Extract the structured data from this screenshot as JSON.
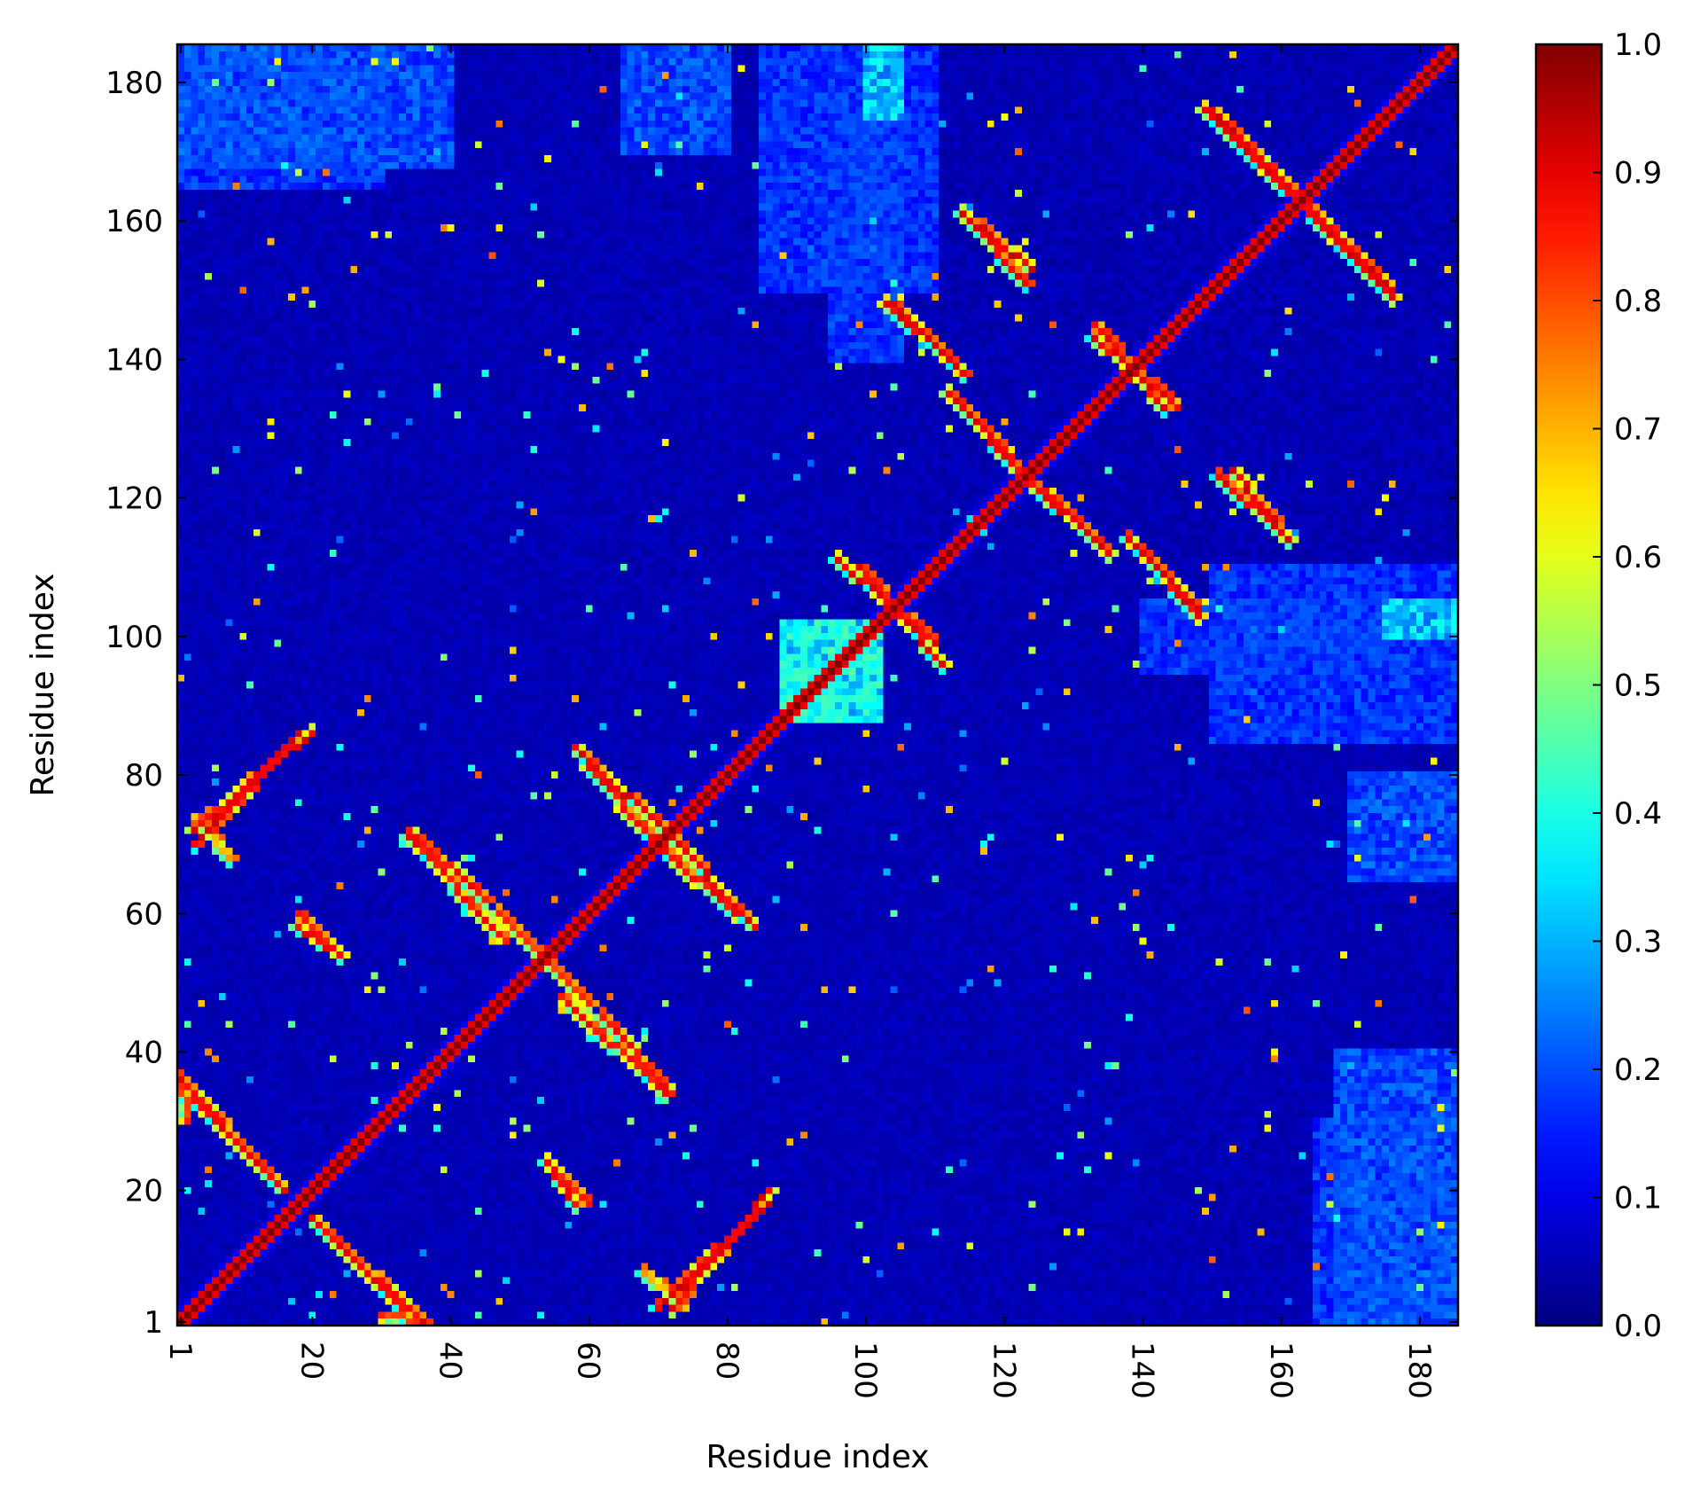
{
  "chart_data": {
    "type": "heatmap",
    "title": "",
    "xlabel": "Residue index",
    "ylabel": "Residue index",
    "x_ticks": [
      1,
      20,
      40,
      60,
      80,
      100,
      120,
      140,
      160,
      180
    ],
    "y_ticks": [
      1,
      20,
      40,
      60,
      80,
      100,
      120,
      140,
      160,
      180
    ],
    "x_tick_labels": [
      "1",
      "20",
      "40",
      "60",
      "80",
      "100",
      "120",
      "140",
      "160",
      "180"
    ],
    "y_tick_labels": [
      "1",
      "20",
      "40",
      "60",
      "80",
      "100",
      "120",
      "140",
      "160",
      "180"
    ],
    "n_residues": 185,
    "xlim": [
      1,
      185
    ],
    "ylim": [
      1,
      185
    ],
    "colormap": "jet",
    "colorbar": {
      "min": 0.0,
      "max": 1.0,
      "ticks": [
        0.0,
        0.1,
        0.2,
        0.3,
        0.4,
        0.5,
        0.6,
        0.7,
        0.8,
        0.9,
        1.0
      ],
      "tick_labels": [
        "0.0",
        "0.1",
        "0.2",
        "0.3",
        "0.4",
        "0.5",
        "0.6",
        "0.7",
        "0.8",
        "0.9",
        "1.0"
      ]
    },
    "matrix_symmetric": true,
    "diagonal_value": 1.0,
    "background_value": 0.05,
    "contact_segments": [
      {
        "start": [
          1,
          36
        ],
        "end": [
          12,
          24
        ],
        "value": 0.92
      },
      {
        "start": [
          3,
          70
        ],
        "end": [
          18,
          86
        ],
        "value": 0.93
      },
      {
        "start": [
          3,
          74
        ],
        "end": [
          8,
          68
        ],
        "value": 0.7
      },
      {
        "start": [
          18,
          60
        ],
        "end": [
          24,
          54
        ],
        "value": 0.9
      },
      {
        "start": [
          20,
          16
        ],
        "end": [
          33,
          3
        ],
        "value": 0.92
      },
      {
        "start": [
          30,
          2
        ],
        "end": [
          36,
          1
        ],
        "value": 0.85
      },
      {
        "start": [
          34,
          72
        ],
        "end": [
          45,
          62
        ],
        "value": 0.9
      },
      {
        "start": [
          47,
          60
        ],
        "end": [
          60,
          47
        ],
        "value": 0.85
      },
      {
        "start": [
          54,
          24
        ],
        "end": [
          58,
          18
        ],
        "value": 0.9
      },
      {
        "start": [
          56,
          48
        ],
        "end": [
          71,
          34
        ],
        "value": 0.9
      },
      {
        "start": [
          58,
          84
        ],
        "end": [
          73,
          70
        ],
        "value": 0.92
      },
      {
        "start": [
          70,
          70
        ],
        "end": [
          81,
          60
        ],
        "value": 0.9
      },
      {
        "start": [
          72,
          3
        ],
        "end": [
          86,
          20
        ],
        "value": 0.92
      },
      {
        "start": [
          99,
          110
        ],
        "end": [
          111,
          96
        ],
        "value": 0.92
      },
      {
        "start": [
          104,
          148
        ],
        "end": [
          114,
          138
        ],
        "value": 0.92
      },
      {
        "start": [
          112,
          135
        ],
        "end": [
          124,
          122
        ],
        "value": 0.92
      },
      {
        "start": [
          114,
          161
        ],
        "end": [
          123,
          151
        ],
        "value": 0.92
      },
      {
        "start": [
          126,
          121
        ],
        "end": [
          135,
          112
        ],
        "value": 0.92
      },
      {
        "start": [
          133,
          145
        ],
        "end": [
          143,
          133
        ],
        "value": 0.92
      },
      {
        "start": [
          140,
          112
        ],
        "end": [
          148,
          103
        ],
        "value": 0.92
      },
      {
        "start": [
          150,
          176
        ],
        "end": [
          163,
          163
        ],
        "value": 0.93
      },
      {
        "start": [
          153,
          124
        ],
        "end": [
          161,
          114
        ],
        "value": 0.93
      },
      {
        "start": [
          164,
          161
        ],
        "end": [
          176,
          149
        ],
        "value": 0.93
      }
    ],
    "glow_regions": [
      {
        "x": [
          88,
          102
        ],
        "y": [
          88,
          102
        ],
        "value": 0.45
      },
      {
        "x": [
          100,
          105
        ],
        "y": [
          175,
          185
        ],
        "value": 0.4
      },
      {
        "x": [
          1,
          30
        ],
        "y": [
          165,
          185
        ],
        "value": 0.22
      },
      {
        "x": [
          65,
          80
        ],
        "y": [
          170,
          185
        ],
        "value": 0.25
      },
      {
        "x": [
          95,
          105
        ],
        "y": [
          140,
          175
        ],
        "value": 0.22
      },
      {
        "x": [
          150,
          185
        ],
        "y": [
          85,
          110
        ],
        "value": 0.22
      },
      {
        "x": [
          168,
          185
        ],
        "y": [
          1,
          40
        ],
        "value": 0.25
      },
      {
        "x": [
          1,
          110
        ],
        "y": [
          1,
          185
        ],
        "value": 0.05
      }
    ]
  }
}
